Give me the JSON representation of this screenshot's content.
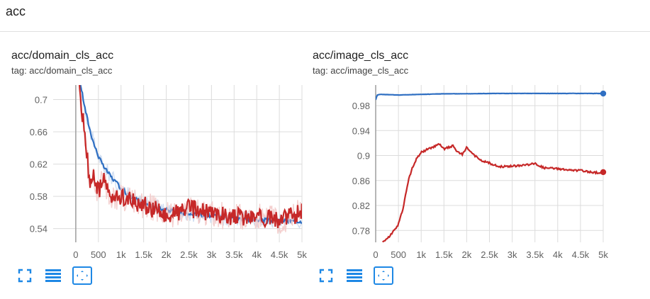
{
  "section": {
    "title": "acc"
  },
  "colors": {
    "blue": "#2f6fc2",
    "red": "#c62828",
    "red_light": "#f2c7c5",
    "icon": "#1e88e5"
  },
  "icons": {
    "expand": "fullscreen-icon",
    "data": "data-table-icon",
    "fit": "fit-domain-icon"
  },
  "cards": [
    {
      "title": "acc/domain_cls_acc",
      "tag": "tag: acc/domain_cls_acc",
      "chart_data": {
        "type": "line",
        "title": "acc/domain_cls_acc",
        "xlabel": "",
        "ylabel": "",
        "xlim": [
          -500,
          5000
        ],
        "ylim": [
          0.523,
          0.718
        ],
        "x_ticks": [
          0,
          500,
          1000,
          1500,
          2000,
          2500,
          3000,
          3500,
          4000,
          4500,
          5000
        ],
        "x_tick_labels": [
          "0",
          "500",
          "1k",
          "1.5k",
          "2k",
          "2.5k",
          "3k",
          "3.5k",
          "4k",
          "4.5k",
          "5k"
        ],
        "y_ticks": [
          0.54,
          0.58,
          0.62,
          0.66,
          0.7
        ],
        "y_tick_labels": [
          "0.54",
          "0.58",
          "0.62",
          "0.66",
          "0.7"
        ],
        "grid": true,
        "series": [
          {
            "color": "blue",
            "x": [
              50,
              100,
              150,
              200,
              300,
              400,
              500,
              600,
              800,
              1000,
              1200,
              1500,
              1800,
              2000,
              2500,
              3000,
              3500,
              4000,
              4500,
              5000
            ],
            "y": [
              0.73,
              0.72,
              0.705,
              0.69,
              0.665,
              0.645,
              0.63,
              0.618,
              0.603,
              0.59,
              0.58,
              0.572,
              0.566,
              0.563,
              0.558,
              0.556,
              0.553,
              0.551,
              0.55,
              0.549
            ]
          },
          {
            "color": "red",
            "x": [
              50,
              100,
              150,
              200,
              250,
              300,
              400,
              500,
              600,
              700,
              800,
              1000,
              1200,
              1500,
              1800,
              2000,
              2500,
              3000,
              3500,
              4000,
              4500,
              5000
            ],
            "y": [
              0.73,
              0.705,
              0.68,
              0.655,
              0.63,
              0.6,
              0.605,
              0.585,
              0.6,
              0.59,
              0.575,
              0.58,
              0.575,
              0.57,
              0.562,
              0.555,
              0.565,
              0.558,
              0.555,
              0.555,
              0.55,
              0.56
            ]
          }
        ],
        "end_markers": false
      }
    },
    {
      "title": "acc/image_cls_acc",
      "tag": "tag: acc/image_cls_acc",
      "chart_data": {
        "type": "line",
        "title": "acc/image_cls_acc",
        "xlabel": "",
        "ylabel": "",
        "xlim": [
          0,
          5000
        ],
        "ylim": [
          0.761,
          1.013
        ],
        "x_ticks": [
          0,
          500,
          1000,
          1500,
          2000,
          2500,
          3000,
          3500,
          4000,
          4500,
          5000
        ],
        "x_tick_labels": [
          "0",
          "500",
          "1k",
          "1.5k",
          "2k",
          "2.5k",
          "3k",
          "3.5k",
          "4k",
          "4.5k",
          "5k"
        ],
        "y_ticks": [
          0.78,
          0.82,
          0.86,
          0.9,
          0.94,
          0.98
        ],
        "y_tick_labels": [
          "0.78",
          "0.82",
          "0.86",
          "0.9",
          "0.94",
          "0.98"
        ],
        "grid": true,
        "series": [
          {
            "color": "blue",
            "x": [
              0,
              30,
              100,
              500,
              1000,
              1500,
              2000,
              2500,
              3000,
              3500,
              4000,
              4500,
              5000
            ],
            "y": [
              0.989,
              0.997,
              0.998,
              0.997,
              0.998,
              0.999,
              0.999,
              0.9995,
              0.9995,
              0.9995,
              0.9995,
              0.9995,
              0.9995
            ]
          },
          {
            "color": "red",
            "x": [
              150,
              300,
              500,
              600,
              700,
              800,
              900,
              1000,
              1200,
              1400,
              1500,
              1700,
              1800,
              1900,
              2000,
              2100,
              2300,
              2500,
              2700,
              3000,
              3300,
              3500,
              3700,
              4000,
              4300,
              4500,
              4800,
              5000
            ],
            "y": [
              0.761,
              0.77,
              0.79,
              0.815,
              0.855,
              0.88,
              0.895,
              0.905,
              0.912,
              0.918,
              0.91,
              0.916,
              0.905,
              0.902,
              0.913,
              0.905,
              0.892,
              0.888,
              0.882,
              0.883,
              0.885,
              0.887,
              0.88,
              0.879,
              0.876,
              0.876,
              0.873,
              0.872
            ]
          }
        ],
        "end_markers": true
      }
    }
  ]
}
